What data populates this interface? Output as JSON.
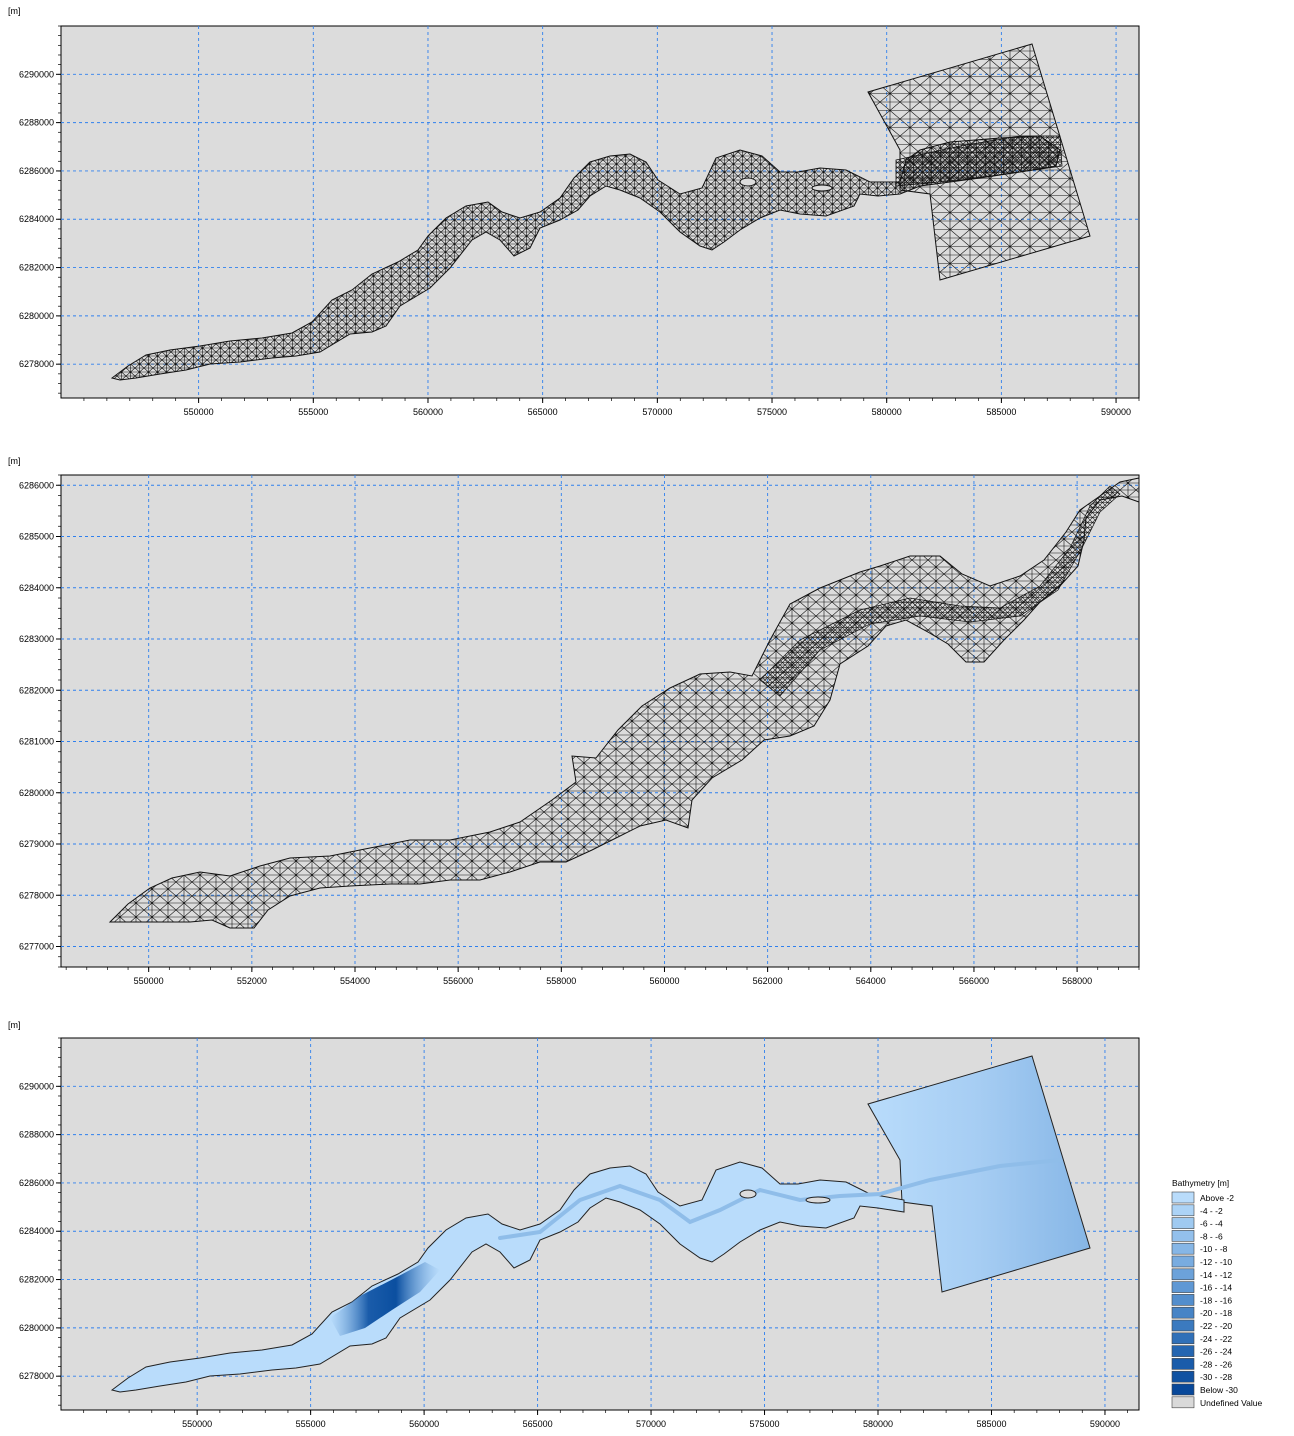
{
  "panels": [
    {
      "name": "mesh-full",
      "unit_label": "[m]",
      "xlim": [
        544000,
        591000
      ],
      "ylim": [
        6276600,
        6292000
      ],
      "xticks": [
        550000,
        555000,
        560000,
        565000,
        570000,
        575000,
        580000,
        585000,
        590000
      ],
      "xtick_labels": [
        "550000",
        "555000",
        "560000",
        "565000",
        "570000",
        "575000",
        "580000",
        "585000",
        "590000"
      ],
      "yticks": [
        6278000,
        6280000,
        6282000,
        6284000,
        6286000,
        6288000,
        6290000
      ],
      "ytick_labels": [
        "6278000",
        "6280000",
        "6282000",
        "6284000",
        "6286000",
        "6288000",
        "6290000"
      ],
      "grid": true,
      "style": "mesh"
    },
    {
      "name": "mesh-zoom",
      "unit_label": "[m]",
      "xlim": [
        548300,
        569200
      ],
      "ylim": [
        6276600,
        6286200
      ],
      "xticks": [
        550000,
        552000,
        554000,
        556000,
        558000,
        560000,
        562000,
        564000,
        566000,
        568000
      ],
      "xtick_labels": [
        "550000",
        "552000",
        "554000",
        "556000",
        "558000",
        "560000",
        "562000",
        "564000",
        "566000",
        "568000"
      ],
      "yticks": [
        6277000,
        6278000,
        6279000,
        6280000,
        6281000,
        6282000,
        6283000,
        6284000,
        6285000,
        6286000
      ],
      "ytick_labels": [
        "6277000",
        "6278000",
        "6279000",
        "6280000",
        "6281000",
        "6282000",
        "6283000",
        "6284000",
        "6285000",
        "6286000"
      ],
      "grid": true,
      "style": "mesh"
    },
    {
      "name": "bathymetry",
      "unit_label": "[m]",
      "xlim": [
        544000,
        591500
      ],
      "ylim": [
        6276600,
        6292000
      ],
      "xticks": [
        550000,
        555000,
        560000,
        565000,
        570000,
        575000,
        580000,
        585000,
        590000
      ],
      "xtick_labels": [
        "550000",
        "555000",
        "560000",
        "565000",
        "570000",
        "575000",
        "580000",
        "585000",
        "590000"
      ],
      "yticks": [
        6278000,
        6280000,
        6282000,
        6284000,
        6286000,
        6288000,
        6290000
      ],
      "ytick_labels": [
        "6278000",
        "6280000",
        "6282000",
        "6284000",
        "6286000",
        "6288000",
        "6290000"
      ],
      "grid": true,
      "style": "bathymetry"
    }
  ],
  "legend": {
    "title": "Bathymetry [m]",
    "entries": [
      {
        "label": "Above  -2",
        "color": "#b9dcfb"
      },
      {
        "label": "-4 -  -2",
        "color": "#acd3f6"
      },
      {
        "label": "-6 -  -4",
        "color": "#9fcaf1"
      },
      {
        "label": "-8 -  -6",
        "color": "#93c0ec"
      },
      {
        "label": "-10 -  -8",
        "color": "#86b6e6"
      },
      {
        "label": "-12 - -10",
        "color": "#79ace0"
      },
      {
        "label": "-14 - -12",
        "color": "#6ca2da"
      },
      {
        "label": "-16 - -14",
        "color": "#5f98d4"
      },
      {
        "label": "-18 - -16",
        "color": "#538ecd"
      },
      {
        "label": "-20 - -18",
        "color": "#4784c6"
      },
      {
        "label": "-22 - -20",
        "color": "#3b7abf"
      },
      {
        "label": "-24 - -22",
        "color": "#3070b8"
      },
      {
        "label": "-26 - -24",
        "color": "#2566b1"
      },
      {
        "label": "-28 - -26",
        "color": "#1a5caa"
      },
      {
        "label": "-30 - -28",
        "color": "#1052a2"
      },
      {
        "label": "Below -30",
        "color": "#08489a"
      },
      {
        "label": "Undefined Value",
        "color": "#d9d9d9"
      }
    ]
  },
  "colors": {
    "plot_background": "#dcdcdc",
    "grid": "#2f80ee",
    "mesh_line": "#111111",
    "water_shallow": "#b9dcfb",
    "water_deep": "#0b4fa0"
  }
}
